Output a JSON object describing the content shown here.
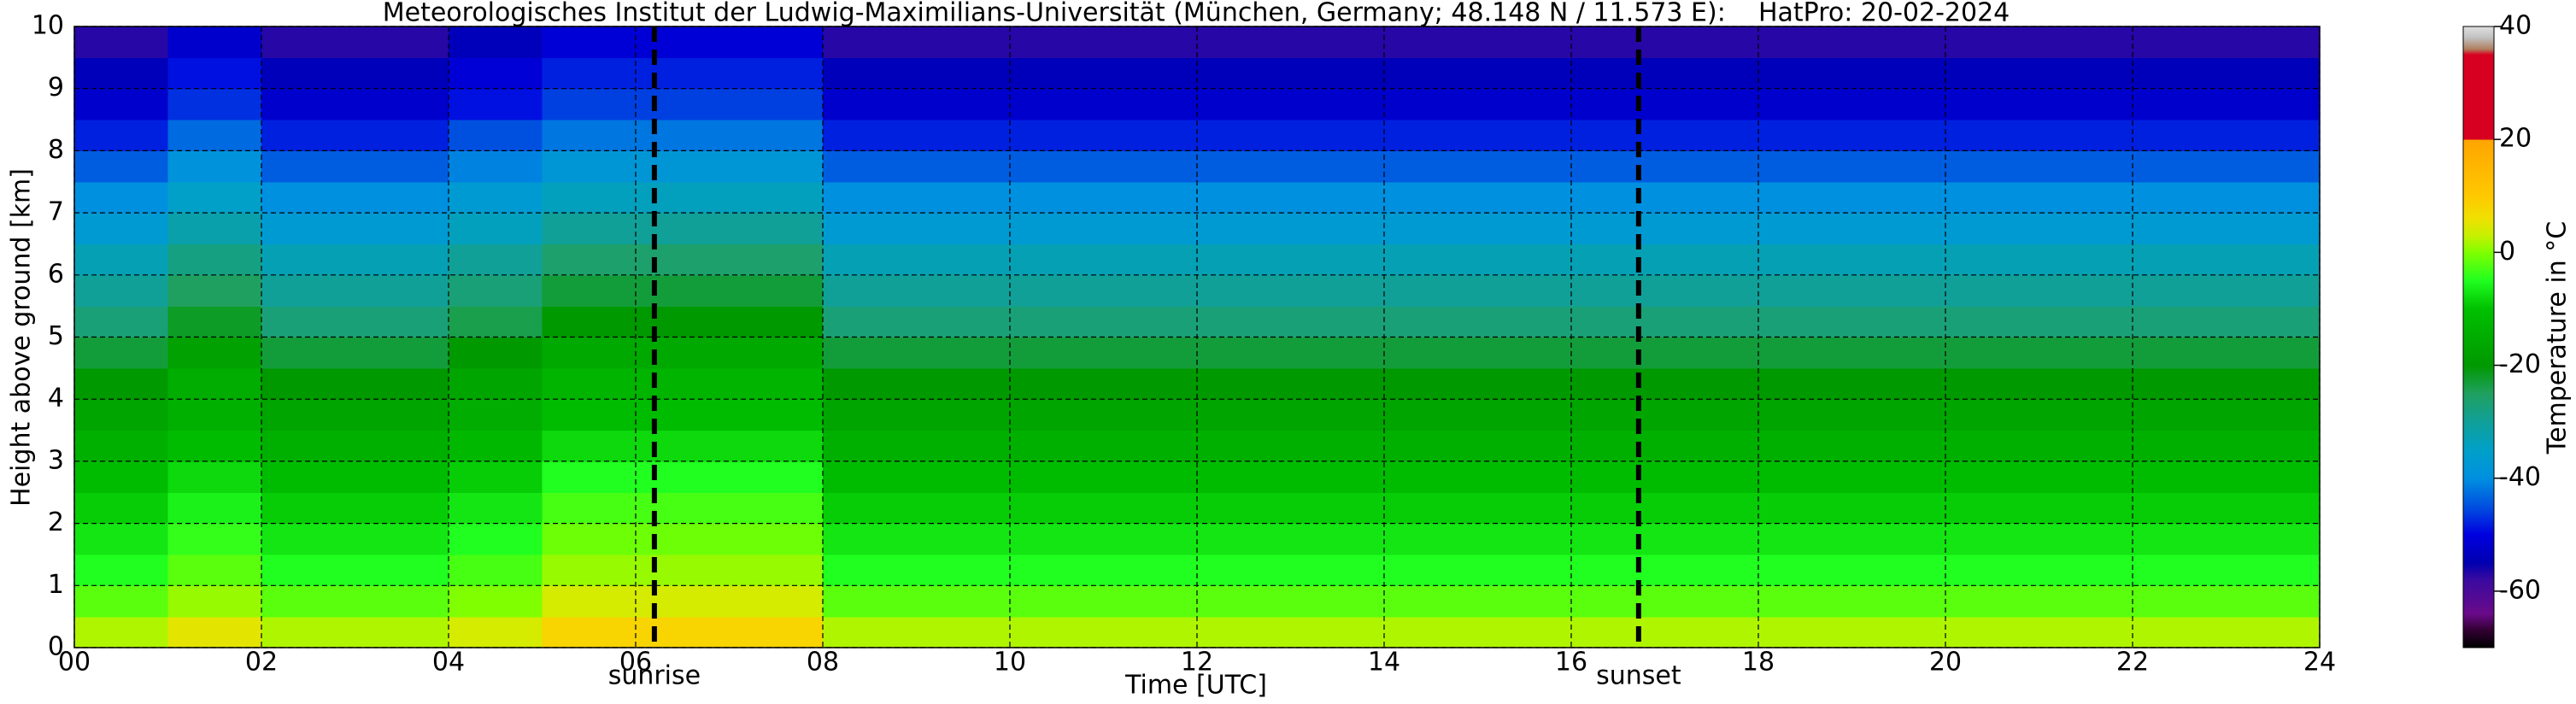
{
  "chart_data": {
    "type": "heatmap",
    "title": "Meteorologisches Institut der Ludwig-Maximilians-Universität (München, Germany; 48.148 N / 11.573 E):    HatPro: 20-02-2024",
    "xlabel": "Time [UTC]",
    "ylabel": "Height above ground [km]",
    "colorbar_label": "Temperature in °C",
    "x": [
      0,
      1,
      2,
      3,
      4,
      5,
      6,
      7,
      8,
      9,
      10,
      11,
      12,
      13,
      14,
      15,
      16,
      17,
      18,
      19,
      20,
      21,
      22,
      23,
      24
    ],
    "y": [
      0,
      0.5,
      1,
      1.5,
      2,
      2.5,
      3,
      3.5,
      4,
      4.5,
      5,
      5.5,
      6,
      6.5,
      7,
      7.5,
      8,
      8.5,
      9,
      9.5,
      10
    ],
    "z": [
      [
        2,
        5,
        2,
        2,
        4,
        8,
        8,
        8,
        2,
        2,
        2,
        2,
        2,
        2,
        2,
        2,
        2,
        2,
        2,
        2,
        2,
        2,
        2,
        2
      ],
      [
        -2,
        1,
        -2,
        -2,
        0,
        4,
        4,
        4,
        -2,
        -2,
        -2,
        -2,
        -2,
        -2,
        -2,
        -2,
        -2,
        -2,
        -2,
        -2,
        -2,
        -2,
        -2,
        -2
      ],
      [
        -5,
        -2,
        -5,
        -5,
        -3,
        1,
        1,
        1,
        -5,
        -5,
        -5,
        -5,
        -5,
        -5,
        -5,
        -5,
        -5,
        -5,
        -5,
        -5,
        -5,
        -5,
        -5,
        -5
      ],
      [
        -7,
        -4,
        -7,
        -7,
        -5,
        -1,
        -1,
        -1,
        -7,
        -7,
        -7,
        -7,
        -7,
        -7,
        -7,
        -7,
        -7,
        -7,
        -7,
        -7,
        -7,
        -7,
        -7,
        -7
      ],
      [
        -9,
        -6,
        -9,
        -9,
        -7,
        -3,
        -3,
        -3,
        -9,
        -9,
        -9,
        -9,
        -9,
        -9,
        -9,
        -9,
        -9,
        -9,
        -9,
        -9,
        -9,
        -9,
        -9,
        -9
      ],
      [
        -11,
        -8,
        -11,
        -11,
        -9,
        -5,
        -5,
        -5,
        -11,
        -11,
        -11,
        -11,
        -11,
        -11,
        -11,
        -11,
        -11,
        -11,
        -11,
        -11,
        -11,
        -11,
        -11,
        -11
      ],
      [
        -14,
        -11,
        -14,
        -14,
        -12,
        -8,
        -8,
        -8,
        -14,
        -14,
        -14,
        -14,
        -14,
        -14,
        -14,
        -14,
        -14,
        -14,
        -14,
        -14,
        -14,
        -14,
        -14,
        -14
      ],
      [
        -17,
        -14,
        -17,
        -17,
        -15,
        -11,
        -11,
        -11,
        -17,
        -17,
        -17,
        -17,
        -17,
        -17,
        -17,
        -17,
        -17,
        -17,
        -17,
        -17,
        -17,
        -17,
        -17,
        -17
      ],
      [
        -20,
        -15,
        -20,
        -20,
        -17,
        -13,
        -13,
        -13,
        -20,
        -20,
        -20,
        -20,
        -20,
        -20,
        -20,
        -20,
        -20,
        -20,
        -20,
        -20,
        -20,
        -20,
        -20,
        -20
      ],
      [
        -23,
        -18,
        -23,
        -23,
        -20,
        -16,
        -16,
        -16,
        -23,
        -23,
        -23,
        -23,
        -23,
        -23,
        -23,
        -23,
        -23,
        -23,
        -23,
        -23,
        -23,
        -23,
        -23,
        -23
      ],
      [
        -27,
        -22,
        -27,
        -27,
        -24,
        -20,
        -20,
        -20,
        -27,
        -27,
        -27,
        -27,
        -27,
        -27,
        -27,
        -27,
        -27,
        -27,
        -27,
        -27,
        -27,
        -27,
        -27,
        -27
      ],
      [
        -30,
        -25,
        -30,
        -30,
        -27,
        -23,
        -23,
        -23,
        -30,
        -30,
        -30,
        -30,
        -30,
        -30,
        -30,
        -30,
        -30,
        -30,
        -30,
        -30,
        -30,
        -30,
        -30,
        -30
      ],
      [
        -33,
        -28,
        -33,
        -33,
        -30,
        -26,
        -26,
        -26,
        -33,
        -33,
        -33,
        -33,
        -33,
        -33,
        -33,
        -33,
        -33,
        -33,
        -33,
        -33,
        -33,
        -33,
        -33,
        -33
      ],
      [
        -37,
        -32,
        -37,
        -37,
        -34,
        -30,
        -30,
        -30,
        -37,
        -37,
        -37,
        -37,
        -37,
        -37,
        -37,
        -37,
        -37,
        -37,
        -37,
        -37,
        -37,
        -37,
        -37,
        -37
      ],
      [
        -40,
        -35,
        -40,
        -40,
        -37,
        -34,
        -34,
        -34,
        -40,
        -40,
        -40,
        -40,
        -40,
        -40,
        -40,
        -40,
        -40,
        -40,
        -40,
        -40,
        -40,
        -40,
        -40,
        -40
      ],
      [
        -44,
        -39,
        -44,
        -44,
        -41,
        -38,
        -38,
        -38,
        -44,
        -44,
        -44,
        -44,
        -44,
        -44,
        -44,
        -44,
        -44,
        -44,
        -44,
        -44,
        -44,
        -44,
        -44,
        -44
      ],
      [
        -48,
        -43,
        -48,
        -48,
        -45,
        -42,
        -42,
        -42,
        -48,
        -48,
        -48,
        -48,
        -48,
        -48,
        -48,
        -48,
        -48,
        -48,
        -48,
        -48,
        -48,
        -48,
        -48,
        -48
      ],
      [
        -52,
        -47,
        -52,
        -52,
        -49,
        -46,
        -46,
        -46,
        -52,
        -52,
        -52,
        -52,
        -52,
        -52,
        -52,
        -52,
        -52,
        -52,
        -52,
        -52,
        -52,
        -52,
        -52,
        -52
      ],
      [
        -54,
        -49,
        -54,
        -54,
        -51,
        -48,
        -48,
        -48,
        -54,
        -54,
        -54,
        -54,
        -54,
        -54,
        -54,
        -54,
        -54,
        -54,
        -54,
        -54,
        -54,
        -54,
        -54,
        -54
      ],
      [
        -57,
        -52,
        -57,
        -57,
        -54,
        -51,
        -51,
        -51,
        -57,
        -57,
        -57,
        -57,
        -57,
        -57,
        -57,
        -57,
        -57,
        -57,
        -57,
        -57,
        -57,
        -57,
        -57,
        -57
      ]
    ],
    "xlim": [
      0,
      24
    ],
    "xticks": [
      {
        "value": 0,
        "label": "00"
      },
      {
        "value": 2,
        "label": "02"
      },
      {
        "value": 4,
        "label": "04"
      },
      {
        "value": 6,
        "label": "06"
      },
      {
        "value": 8,
        "label": "08"
      },
      {
        "value": 10,
        "label": "10"
      },
      {
        "value": 12,
        "label": "12"
      },
      {
        "value": 14,
        "label": "14"
      },
      {
        "value": 16,
        "label": "16"
      },
      {
        "value": 18,
        "label": "18"
      },
      {
        "value": 20,
        "label": "20"
      },
      {
        "value": 22,
        "label": "22"
      },
      {
        "value": 24,
        "label": "24"
      }
    ],
    "ylim": [
      0,
      10
    ],
    "yticks": [
      0,
      1,
      2,
      3,
      4,
      5,
      6,
      7,
      8,
      9,
      10
    ],
    "clim": [
      -70,
      40
    ],
    "cticks": [
      -60,
      -40,
      -20,
      0,
      20,
      40
    ],
    "colorscale": [
      [
        -70,
        "#000000"
      ],
      [
        -67,
        "#300030"
      ],
      [
        -64,
        "#6a0a8a"
      ],
      [
        -58,
        "#3a0aa0"
      ],
      [
        -55,
        "#0000b0"
      ],
      [
        -50,
        "#0000e0"
      ],
      [
        -45,
        "#0050e0"
      ],
      [
        -40,
        "#0090e0"
      ],
      [
        -35,
        "#00a0c8"
      ],
      [
        -30,
        "#10a098"
      ],
      [
        -25,
        "#20a060"
      ],
      [
        -20,
        "#009900"
      ],
      [
        -10,
        "#00c000"
      ],
      [
        -5,
        "#20ff20"
      ],
      [
        0,
        "#80ff00"
      ],
      [
        3,
        "#c8f000"
      ],
      [
        6,
        "#f0e000"
      ],
      [
        10,
        "#ffc800"
      ],
      [
        19.9,
        "#ffa500"
      ],
      [
        20,
        "#d80020"
      ],
      [
        35,
        "#d80020"
      ],
      [
        36,
        "#b08060"
      ],
      [
        38,
        "#c0c0c0"
      ],
      [
        40,
        "#e0e0e0"
      ]
    ],
    "grid": true,
    "annotations": [
      {
        "x": 6.2,
        "label": "sunrise"
      },
      {
        "x": 16.72,
        "label": "sunset"
      }
    ]
  }
}
